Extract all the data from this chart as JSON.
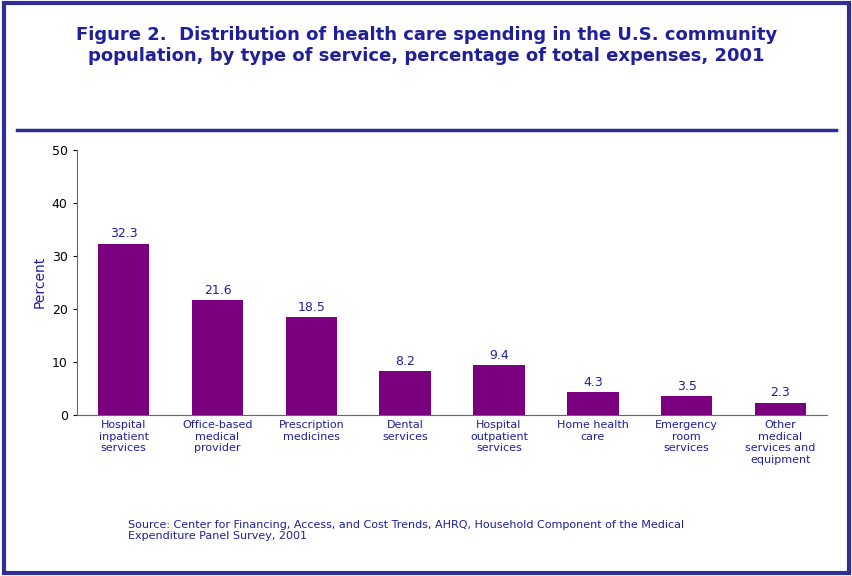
{
  "title_line1": "Figure 2.  Distribution of health care spending in the U.S. community",
  "title_line2": "population, by type of service, percentage of total expenses, 2001",
  "categories": [
    "Hospital\ninpatient\nservices",
    "Office-based\nmedical\nprovider",
    "Prescription\nmedicines",
    "Dental\nservices",
    "Hospital\noutpatient\nservices",
    "Home health\ncare",
    "Emergency\nroom\nservices",
    "Other\nmedical\nservices and\nequipment"
  ],
  "values": [
    32.3,
    21.6,
    18.5,
    8.2,
    9.4,
    4.3,
    3.5,
    2.3
  ],
  "bar_color": "#7B0080",
  "ylabel": "Percent",
  "ylim": [
    0,
    50
  ],
  "yticks": [
    0,
    10,
    20,
    30,
    40,
    50
  ],
  "title_color": "#1F1F9B",
  "bar_label_color": "#1F1F9B",
  "ylabel_color": "#1F1F9B",
  "xtick_color": "#1F1F9B",
  "ytick_color": "#000000",
  "bg_color": "#FFFFFF",
  "border_color": "#2E2E9A",
  "separator_color": "#2E2E9A",
  "source_text": "Source: Center for Financing, Access, and Cost Trends, AHRQ, Household Component of the Medical\nExpenditure Panel Survey, 2001",
  "title_fontsize": 13,
  "label_fontsize": 9,
  "axis_label_fontsize": 10,
  "source_fontsize": 8
}
